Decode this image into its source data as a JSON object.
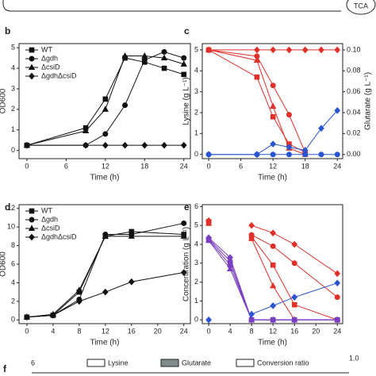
{
  "header": {
    "fragment_text": "TCA"
  },
  "panel_f": {
    "label": "f",
    "ytick": "6",
    "legend": [
      "Lysine",
      "Glutarate",
      "Conversion ratio"
    ],
    "y2tick": "1.0"
  },
  "chart_data": [
    {
      "type": "line",
      "panel": "b",
      "xlabel": "Time (h)",
      "ylabel": "OD600",
      "x": [
        0,
        9,
        12,
        15,
        18,
        21,
        24
      ],
      "xlim": [
        -1.2,
        25
      ],
      "xticks": [
        0,
        6,
        12,
        18,
        24
      ],
      "ylim": [
        -0.4,
        5.2
      ],
      "yticks": [
        0,
        1,
        2,
        3,
        4,
        5
      ],
      "legend": "upper-left",
      "series": [
        {
          "name": "WT",
          "color": "#111",
          "marker": "square",
          "values": [
            0.25,
            1.1,
            2.5,
            4.5,
            4.3,
            4.0,
            3.7
          ]
        },
        {
          "name": "Δgdh",
          "color": "#111",
          "marker": "circle",
          "values": [
            0.25,
            0.25,
            0.8,
            2.2,
            4.4,
            4.8,
            4.5
          ]
        },
        {
          "name": "ΔcsiD",
          "color": "#111",
          "marker": "triangle",
          "values": [
            0.25,
            0.95,
            2.0,
            4.6,
            4.6,
            4.5,
            4.2
          ]
        },
        {
          "name": "ΔgdhΔcsiD",
          "color": "#111",
          "marker": "diamond",
          "values": [
            0.25,
            0.25,
            0.25,
            0.25,
            0.25,
            0.25,
            0.25
          ]
        }
      ]
    },
    {
      "type": "line",
      "panel": "c",
      "xlabel": "Time (h)",
      "ylabel": "Lysine (g L⁻¹)",
      "y2label": "Glutarate (g L⁻¹)",
      "x": [
        0,
        9,
        12,
        15,
        18,
        21,
        24
      ],
      "xlim": [
        -1.2,
        25
      ],
      "xticks": [
        0,
        6,
        12,
        18,
        24
      ],
      "ylim": [
        -0.2,
        5.3
      ],
      "yticks": [
        0,
        1,
        2,
        3,
        4,
        5
      ],
      "y2lim": [
        -0.004,
        0.106
      ],
      "y2ticks": [
        {
          "value": 0,
          "label": "0.00"
        },
        0.02,
        0.04,
        0.06,
        0.08,
        {
          "value": 0.1,
          "label": "0.10"
        }
      ],
      "series": [
        {
          "color": "#e0302a",
          "marker": "square",
          "values": [
            5,
            3.7,
            1.8,
            0.5,
            0.1,
            null,
            null
          ]
        },
        {
          "color": "#e0302a",
          "marker": "circle",
          "values": [
            5,
            4.7,
            3.3,
            1.9,
            0.1,
            null,
            null
          ]
        },
        {
          "color": "#e0302a",
          "marker": "triangle",
          "values": [
            5,
            4.5,
            2.3,
            0.3,
            0,
            null,
            null
          ]
        },
        {
          "color": "#e0302a",
          "marker": "diamond",
          "values": [
            5,
            5,
            5,
            5,
            5,
            5,
            5
          ]
        },
        {
          "color": "#2a55d0",
          "marker": "diamond",
          "axis": "y2",
          "values": [
            0,
            0,
            0.01,
            0.007,
            0.004,
            0.025,
            0.042
          ]
        },
        {
          "color": "#2a55d0",
          "marker": "circle",
          "axis": "y2",
          "values": [
            0,
            0,
            0,
            0,
            0,
            0,
            0
          ]
        }
      ]
    },
    {
      "type": "line",
      "panel": "d",
      "xlabel": "Time (h)",
      "ylabel": "OD600",
      "x": [
        0,
        4,
        8,
        12,
        16,
        24
      ],
      "xlim": [
        -1.2,
        25
      ],
      "xticks": [
        0,
        4,
        8,
        12,
        16,
        20,
        24
      ],
      "ylim": [
        -0.4,
        12.4
      ],
      "yticks": [
        0,
        2,
        4,
        6,
        8,
        10,
        12
      ],
      "legend": "upper-left",
      "series": [
        {
          "name": "WT",
          "color": "#111",
          "marker": "square",
          "values": [
            0.3,
            0.5,
            3.0,
            9.0,
            9.5,
            9.2
          ]
        },
        {
          "name": "Δgdh",
          "color": "#111",
          "marker": "circle",
          "values": [
            0.3,
            0.5,
            2.2,
            9.2,
            9.2,
            10.4
          ]
        },
        {
          "name": "ΔcsiD",
          "color": "#111",
          "marker": "triangle",
          "values": [
            0.3,
            0.6,
            3.2,
            9.0,
            9.0,
            9.0
          ]
        },
        {
          "name": "ΔgdhΔcsiD",
          "color": "#111",
          "marker": "diamond",
          "values": [
            0.3,
            0.5,
            2.0,
            3.0,
            4.1,
            5.1
          ]
        }
      ]
    },
    {
      "type": "line",
      "panel": "e",
      "xlabel": "Time (h)",
      "ylabel": "Concentration (g L⁻¹)",
      "x": [
        0,
        4,
        8,
        12,
        16,
        24
      ],
      "xlim": [
        -1.2,
        25
      ],
      "xticks": [
        0,
        4,
        8,
        12,
        16,
        20,
        24
      ],
      "ylim": [
        -0.2,
        6.1
      ],
      "yticks": [
        0,
        1,
        2,
        3,
        4,
        5,
        6
      ],
      "series": [
        {
          "color": "#e0302a",
          "marker": "diamond",
          "values": [
            5.25,
            null,
            5.0,
            4.6,
            4.0,
            2.45
          ]
        },
        {
          "color": "#e0302a",
          "marker": "circle",
          "values": [
            5.2,
            null,
            4.5,
            3.9,
            3.0,
            1.2
          ]
        },
        {
          "color": "#e0302a",
          "marker": "square",
          "values": [
            5.2,
            null,
            4.4,
            2.9,
            0.8,
            0
          ]
        },
        {
          "color": "#e0302a",
          "marker": "triangle",
          "values": [
            5.1,
            null,
            4.3,
            1.8,
            0,
            0
          ]
        },
        {
          "color": "#7a3fc0",
          "marker": "diamond",
          "values": [
            4.35,
            3.3,
            0,
            0,
            0,
            0
          ]
        },
        {
          "color": "#7a3fc0",
          "marker": "circle",
          "values": [
            4.3,
            3.1,
            0,
            0,
            0,
            0
          ]
        },
        {
          "color": "#7a3fc0",
          "marker": "square",
          "values": [
            4.25,
            2.9,
            0,
            0,
            0,
            0
          ]
        },
        {
          "color": "#7a3fc0",
          "marker": "triangle",
          "values": [
            4.2,
            2.7,
            0,
            0,
            0,
            0
          ]
        },
        {
          "color": "#2a55d0",
          "marker": "diamond",
          "values": [
            0,
            null,
            0.3,
            0.75,
            1.2,
            1.95
          ]
        }
      ]
    }
  ]
}
